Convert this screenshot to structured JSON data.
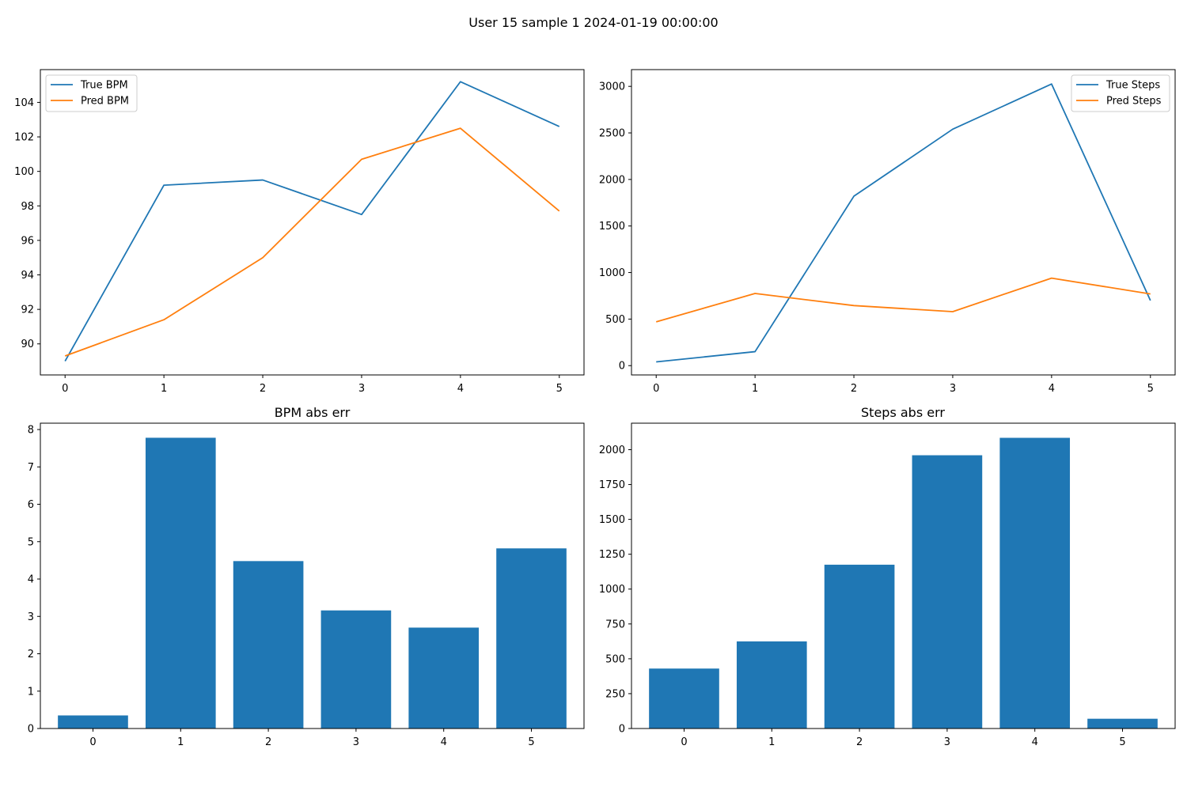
{
  "suptitle": "User 15 sample 1 2024-01-19 00:00:00",
  "colors": {
    "true": "#1f77b4",
    "pred": "#ff7f0e",
    "bar": "#1f77b4"
  },
  "chart_data": [
    {
      "id": "bpm-line",
      "type": "line",
      "title": "",
      "x": [
        0,
        1,
        2,
        3,
        4,
        5
      ],
      "xticks": [
        0,
        1,
        2,
        3,
        4,
        5
      ],
      "yticks": [
        90,
        92,
        94,
        96,
        98,
        100,
        102,
        104
      ],
      "ylim": [
        88.2,
        105.9
      ],
      "xlim": [
        -0.25,
        5.25
      ],
      "legend": "top-left",
      "series": [
        {
          "name": "True BPM",
          "color": "#1f77b4",
          "values": [
            89.0,
            99.2,
            99.5,
            97.5,
            105.2,
            102.6
          ]
        },
        {
          "name": "Pred BPM",
          "color": "#ff7f0e",
          "values": [
            89.3,
            91.4,
            95.0,
            100.7,
            102.5,
            97.7
          ]
        }
      ]
    },
    {
      "id": "steps-line",
      "type": "line",
      "title": "",
      "x": [
        0,
        1,
        2,
        3,
        4,
        5
      ],
      "xticks": [
        0,
        1,
        2,
        3,
        4,
        5
      ],
      "yticks": [
        0,
        500,
        1000,
        1500,
        2000,
        2500,
        3000
      ],
      "ylim": [
        -100,
        3180
      ],
      "xlim": [
        -0.25,
        5.25
      ],
      "legend": "top-right",
      "series": [
        {
          "name": "True Steps",
          "color": "#1f77b4",
          "values": [
            40,
            150,
            1820,
            2540,
            3025,
            700
          ]
        },
        {
          "name": "Pred Steps",
          "color": "#ff7f0e",
          "values": [
            470,
            775,
            645,
            580,
            940,
            770
          ]
        }
      ]
    },
    {
      "id": "bpm-bar",
      "type": "bar",
      "title": "BPM abs err",
      "categories": [
        "0",
        "1",
        "2",
        "3",
        "4",
        "5"
      ],
      "values": [
        0.35,
        7.78,
        4.48,
        3.16,
        2.7,
        4.82
      ],
      "yticks": [
        0,
        1,
        2,
        3,
        4,
        5,
        6,
        7,
        8
      ],
      "ylim": [
        0,
        8.17
      ],
      "xlim": [
        -0.6,
        5.6
      ],
      "color": "#1f77b4"
    },
    {
      "id": "steps-bar",
      "type": "bar",
      "title": "Steps abs err",
      "categories": [
        "0",
        "1",
        "2",
        "3",
        "4",
        "5"
      ],
      "values": [
        430,
        625,
        1175,
        1960,
        2085,
        70
      ],
      "yticks": [
        0,
        250,
        500,
        750,
        1000,
        1250,
        1500,
        1750,
        2000
      ],
      "ylim": [
        0,
        2190
      ],
      "xlim": [
        -0.6,
        5.6
      ],
      "color": "#1f77b4"
    }
  ]
}
